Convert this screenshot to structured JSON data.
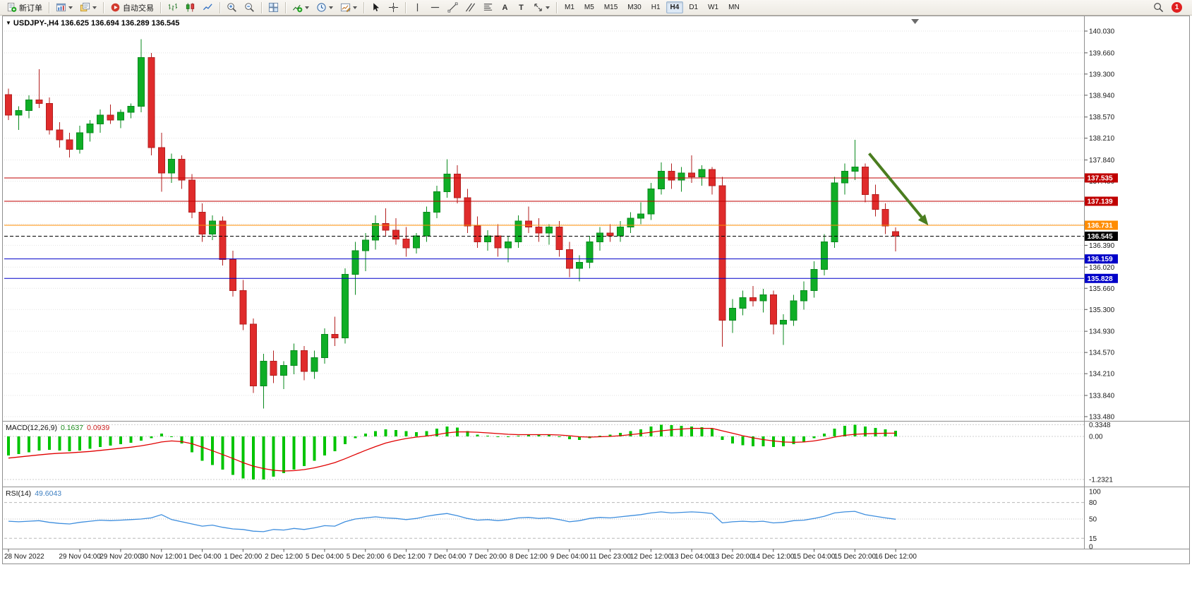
{
  "ui": {
    "collapse_glyph": "▼"
  },
  "toolbar": {
    "items": [
      {
        "name": "new-order",
        "icon": "new-order",
        "label": "新订单"
      },
      {
        "sep": true
      },
      {
        "name": "new-chart",
        "icon": "new-chart",
        "dropdown": true
      },
      {
        "name": "profiles",
        "icon": "profiles",
        "dropdown": true
      },
      {
        "sep": true
      },
      {
        "name": "auto-trading",
        "icon": "auto-trading",
        "label": "自动交易"
      },
      {
        "sep": true
      },
      {
        "name": "chart-bars",
        "icon": "chart-bars"
      },
      {
        "name": "chart-candles",
        "icon": "chart-candles"
      },
      {
        "name": "chart-line",
        "icon": "chart-line"
      },
      {
        "sep": true
      },
      {
        "name": "zoom-in",
        "icon": "zoom-in"
      },
      {
        "name": "zoom-out",
        "icon": "zoom-out"
      },
      {
        "sep": true
      },
      {
        "name": "tile-windows",
        "icon": "tile-windows"
      },
      {
        "sep": true
      },
      {
        "name": "indicators",
        "icon": "indicators",
        "dropdown": true
      },
      {
        "name": "periods",
        "icon": "clock",
        "dropdown": true
      },
      {
        "name": "templates",
        "icon": "templates",
        "dropdown": true
      },
      {
        "sep": true
      },
      {
        "name": "cursor",
        "icon": "cursor"
      },
      {
        "name": "crosshair",
        "icon": "crosshair"
      },
      {
        "sep": true
      },
      {
        "name": "vertical-line",
        "icon": "vline"
      },
      {
        "name": "horizontal-line",
        "icon": "hline"
      },
      {
        "name": "trendline",
        "icon": "trendline"
      },
      {
        "name": "equidistant-channel",
        "icon": "channel"
      },
      {
        "name": "fibonacci",
        "icon": "fibonacci"
      },
      {
        "name": "text",
        "glyph": "A"
      },
      {
        "name": "text-label",
        "glyph": "T"
      },
      {
        "name": "arrows",
        "icon": "arrows",
        "dropdown": true
      },
      {
        "sep": true
      }
    ],
    "timeframes": [
      "M1",
      "M5",
      "M15",
      "M30",
      "H1",
      "H4",
      "D1",
      "W1",
      "MN"
    ],
    "active_timeframe": "H4",
    "badge_count": "1"
  },
  "chart_data": [
    {
      "type": "candlestick",
      "symbol_label": "USDJPY-,H4 136.625 136.694 136.289 136.545",
      "colors": {
        "bull": "#0fae26",
        "bull_stroke": "#0a8a1e",
        "bear": "#e02b2b",
        "bear_stroke": "#b31f1f"
      },
      "y_ticks": [
        140.03,
        139.66,
        139.3,
        138.94,
        138.57,
        138.21,
        137.84,
        137.48,
        137.11,
        136.75,
        136.39,
        136.02,
        135.66,
        135.3,
        134.93,
        134.57,
        134.21,
        133.84,
        133.48
      ],
      "x_labels": [
        {
          "label": "28 Nov 2022",
          "i": 0
        },
        {
          "label": "29 Nov 04:00",
          "i": 7
        },
        {
          "label": "29 Nov 20:00",
          "i": 11
        },
        {
          "label": "30 Nov 12:00",
          "i": 15
        },
        {
          "label": "1 Dec 04:00",
          "i": 19
        },
        {
          "label": "1 Dec 20:00",
          "i": 23
        },
        {
          "label": "2 Dec 12:00",
          "i": 27
        },
        {
          "label": "5 Dec 04:00",
          "i": 31
        },
        {
          "label": "5 Dec 20:00",
          "i": 35
        },
        {
          "label": "6 Dec 12:00",
          "i": 39
        },
        {
          "label": "7 Dec 04:00",
          "i": 43
        },
        {
          "label": "7 Dec 20:00",
          "i": 47
        },
        {
          "label": "8 Dec 12:00",
          "i": 51
        },
        {
          "label": "9 Dec 04:00",
          "i": 55
        },
        {
          "label": "11 Dec 23:00",
          "i": 59
        },
        {
          "label": "12 Dec 12:00",
          "i": 63
        },
        {
          "label": "13 Dec 04:00",
          "i": 67
        },
        {
          "label": "13 Dec 20:00",
          "i": 71
        },
        {
          "label": "14 Dec 12:00",
          "i": 75
        },
        {
          "label": "15 Dec 04:00",
          "i": 79
        },
        {
          "label": "15 Dec 20:00",
          "i": 83
        },
        {
          "label": "16 Dec 12:00",
          "i": 87
        }
      ],
      "hlines": [
        {
          "price": 137.535,
          "label": "137.535",
          "color": "#c00000",
          "style": "solid"
        },
        {
          "price": 137.139,
          "label": "137.139",
          "color": "#c00000",
          "style": "solid"
        },
        {
          "price": 136.731,
          "label": "136.731",
          "color": "#ff8c00",
          "style": "solid"
        },
        {
          "price": 136.545,
          "label": "136.545",
          "color": "#000000",
          "style": "dashed",
          "role": "bid"
        },
        {
          "price": 136.159,
          "label": "136.159",
          "color": "#0000c8",
          "style": "solid"
        },
        {
          "price": 135.828,
          "label": "135.828",
          "color": "#0000c8",
          "style": "solid"
        }
      ],
      "arrow": {
        "from_index": 84.4,
        "from_price": 137.95,
        "to_index": 90.2,
        "to_price": 136.73,
        "color": "#4a7d1f",
        "width": 4
      },
      "shift_marker_index": 88.9,
      "candles": [
        [
          138.95,
          139.05,
          138.52,
          138.6
        ],
        [
          138.6,
          138.75,
          138.35,
          138.68
        ],
        [
          138.68,
          138.94,
          138.55,
          138.86
        ],
        [
          138.86,
          139.38,
          138.72,
          138.8
        ],
        [
          138.8,
          138.9,
          138.27,
          138.35
        ],
        [
          138.35,
          138.48,
          138.05,
          138.18
        ],
        [
          138.18,
          138.3,
          137.88,
          138.02
        ],
        [
          138.02,
          138.42,
          137.95,
          138.3
        ],
        [
          138.3,
          138.52,
          138.15,
          138.45
        ],
        [
          138.45,
          138.7,
          138.3,
          138.6
        ],
        [
          138.6,
          138.78,
          138.45,
          138.52
        ],
        [
          138.52,
          138.7,
          138.38,
          138.65
        ],
        [
          138.65,
          138.8,
          138.55,
          138.75
        ],
        [
          138.75,
          139.89,
          138.65,
          139.58
        ],
        [
          139.58,
          139.66,
          137.92,
          138.05
        ],
        [
          138.05,
          138.3,
          137.3,
          137.62
        ],
        [
          137.62,
          137.95,
          137.45,
          137.85
        ],
        [
          137.85,
          137.92,
          137.35,
          137.5
        ],
        [
          137.5,
          137.6,
          136.85,
          136.95
        ],
        [
          136.95,
          137.1,
          136.45,
          136.58
        ],
        [
          136.58,
          136.9,
          136.48,
          136.8
        ],
        [
          136.8,
          136.88,
          136.05,
          136.15
        ],
        [
          136.15,
          136.3,
          135.52,
          135.62
        ],
        [
          135.62,
          135.8,
          134.95,
          135.05
        ],
        [
          135.05,
          135.15,
          133.88,
          134.0
        ],
        [
          134.0,
          134.55,
          133.62,
          134.42
        ],
        [
          134.42,
          134.6,
          134.05,
          134.18
        ],
        [
          134.18,
          134.42,
          133.95,
          134.35
        ],
        [
          134.35,
          134.72,
          134.2,
          134.6
        ],
        [
          134.6,
          134.68,
          134.1,
          134.25
        ],
        [
          134.25,
          134.6,
          134.12,
          134.48
        ],
        [
          134.48,
          134.98,
          134.38,
          134.88
        ],
        [
          134.88,
          135.18,
          134.68,
          134.82
        ],
        [
          134.82,
          136.0,
          134.72,
          135.9
        ],
        [
          135.9,
          136.45,
          135.55,
          136.3
        ],
        [
          136.3,
          136.6,
          135.95,
          136.48
        ],
        [
          136.48,
          136.9,
          136.32,
          136.76
        ],
        [
          136.76,
          137.02,
          136.55,
          136.65
        ],
        [
          136.65,
          136.85,
          136.4,
          136.5
        ],
        [
          136.5,
          136.7,
          136.2,
          136.35
        ],
        [
          136.35,
          136.6,
          136.25,
          136.55
        ],
        [
          136.55,
          137.05,
          136.45,
          136.95
        ],
        [
          136.95,
          137.4,
          136.85,
          137.3
        ],
        [
          137.3,
          137.85,
          137.2,
          137.6
        ],
        [
          137.6,
          137.75,
          137.1,
          137.2
        ],
        [
          137.2,
          137.35,
          136.6,
          136.72
        ],
        [
          136.72,
          136.88,
          136.35,
          136.45
        ],
        [
          136.45,
          136.65,
          136.3,
          136.55
        ],
        [
          136.55,
          136.75,
          136.2,
          136.35
        ],
        [
          136.35,
          136.55,
          136.1,
          136.45
        ],
        [
          136.45,
          136.9,
          136.35,
          136.8
        ],
        [
          136.8,
          137.05,
          136.6,
          136.7
        ],
        [
          136.7,
          136.85,
          136.45,
          136.6
        ],
        [
          136.6,
          136.75,
          136.4,
          136.7
        ],
        [
          136.7,
          136.8,
          136.2,
          136.32
        ],
        [
          136.32,
          136.45,
          135.85,
          136.0
        ],
        [
          136.0,
          136.22,
          135.78,
          136.1
        ],
        [
          136.1,
          136.55,
          136.0,
          136.45
        ],
        [
          136.45,
          136.7,
          136.3,
          136.6
        ],
        [
          136.6,
          136.75,
          136.45,
          136.55
        ],
        [
          136.55,
          136.8,
          136.45,
          136.7
        ],
        [
          136.7,
          136.95,
          136.6,
          136.85
        ],
        [
          136.85,
          137.12,
          136.75,
          136.92
        ],
        [
          136.92,
          137.45,
          136.82,
          137.35
        ],
        [
          137.35,
          137.8,
          137.25,
          137.65
        ],
        [
          137.65,
          137.78,
          137.35,
          137.5
        ],
        [
          137.5,
          137.72,
          137.3,
          137.62
        ],
        [
          137.62,
          137.92,
          137.45,
          137.55
        ],
        [
          137.55,
          137.75,
          137.4,
          137.68
        ],
        [
          137.68,
          137.72,
          137.25,
          137.4
        ],
        [
          137.4,
          137.55,
          134.67,
          135.12
        ],
        [
          135.12,
          135.48,
          134.9,
          135.32
        ],
        [
          135.32,
          135.62,
          135.2,
          135.5
        ],
        [
          135.5,
          135.7,
          135.35,
          135.45
        ],
        [
          135.45,
          135.65,
          135.25,
          135.55
        ],
        [
          135.55,
          135.62,
          134.88,
          135.05
        ],
        [
          135.05,
          135.22,
          134.7,
          135.12
        ],
        [
          135.12,
          135.55,
          135.02,
          135.45
        ],
        [
          135.45,
          135.78,
          135.3,
          135.62
        ],
        [
          135.62,
          136.12,
          135.5,
          135.98
        ],
        [
          135.98,
          136.58,
          135.88,
          136.45
        ],
        [
          136.45,
          137.55,
          136.35,
          137.45
        ],
        [
          137.45,
          137.78,
          137.25,
          137.65
        ],
        [
          137.65,
          138.18,
          137.5,
          137.72
        ],
        [
          137.72,
          137.78,
          137.12,
          137.25
        ],
        [
          137.25,
          137.42,
          136.88,
          137.0
        ],
        [
          137.0,
          137.1,
          136.58,
          136.72
        ],
        [
          136.625,
          136.694,
          136.289,
          136.545
        ]
      ]
    },
    {
      "type": "bar",
      "label": "MACD(12,26,9)",
      "value_main": "0.1637",
      "value_signal": "0.0939",
      "colors": {
        "hist": "#00c400",
        "signal": "#e00000"
      },
      "y_ticks": [
        {
          "v": 0.3348,
          "label": "0.3348"
        },
        {
          "v": 0,
          "label": "0.00"
        },
        {
          "v": -1.2321,
          "label": "-1.2321"
        }
      ],
      "values": [
        -0.55,
        -0.5,
        -0.45,
        -0.4,
        -0.38,
        -0.4,
        -0.42,
        -0.4,
        -0.35,
        -0.3,
        -0.26,
        -0.22,
        -0.18,
        -0.12,
        -0.05,
        0.08,
        -0.02,
        -0.2,
        -0.45,
        -0.7,
        -0.82,
        -0.95,
        -1.1,
        -1.2,
        -1.23,
        -1.23,
        -1.15,
        -1.05,
        -0.95,
        -0.85,
        -0.7,
        -0.55,
        -0.42,
        -0.22,
        -0.05,
        0.08,
        0.15,
        0.2,
        0.18,
        0.15,
        0.12,
        0.15,
        0.22,
        0.28,
        0.25,
        0.15,
        0.05,
        0.02,
        0.0,
        -0.02,
        0.02,
        0.05,
        0.05,
        0.05,
        0.0,
        -0.08,
        -0.1,
        -0.05,
        0.02,
        0.05,
        0.1,
        0.15,
        0.2,
        0.28,
        0.33,
        0.32,
        0.3,
        0.28,
        0.26,
        0.22,
        -0.1,
        -0.2,
        -0.25,
        -0.28,
        -0.28,
        -0.3,
        -0.28,
        -0.22,
        -0.15,
        -0.05,
        0.08,
        0.22,
        0.3,
        0.33,
        0.28,
        0.24,
        0.2,
        0.1637
      ],
      "signal": [
        -0.62,
        -0.59,
        -0.56,
        -0.53,
        -0.5,
        -0.48,
        -0.47,
        -0.45,
        -0.43,
        -0.4,
        -0.37,
        -0.34,
        -0.31,
        -0.27,
        -0.22,
        -0.16,
        -0.13,
        -0.15,
        -0.21,
        -0.31,
        -0.41,
        -0.52,
        -0.63,
        -0.75,
        -0.85,
        -0.92,
        -0.97,
        -0.99,
        -0.98,
        -0.95,
        -0.9,
        -0.83,
        -0.75,
        -0.64,
        -0.52,
        -0.4,
        -0.29,
        -0.19,
        -0.12,
        -0.06,
        -0.02,
        0.01,
        0.05,
        0.1,
        0.13,
        0.13,
        0.12,
        0.1,
        0.08,
        0.06,
        0.05,
        0.05,
        0.05,
        0.05,
        0.04,
        0.02,
        -0.01,
        -0.02,
        -0.01,
        0.0,
        0.02,
        0.05,
        0.08,
        0.12,
        0.16,
        0.19,
        0.21,
        0.23,
        0.23,
        0.23,
        0.16,
        0.09,
        0.02,
        -0.04,
        -0.09,
        -0.13,
        -0.16,
        -0.17,
        -0.16,
        -0.13,
        -0.08,
        -0.02,
        0.03,
        0.06,
        0.075,
        0.085,
        0.09,
        0.0939
      ]
    },
    {
      "type": "line",
      "label": "RSI(14)",
      "value": "49.6043",
      "color": "#3e8ede",
      "y_ticks": [
        {
          "v": 100,
          "label": "100"
        },
        {
          "v": 80,
          "label": "80"
        },
        {
          "v": 50,
          "label": "50"
        },
        {
          "v": 15,
          "label": "15"
        },
        {
          "v": 0,
          "label": "0"
        }
      ],
      "levels_dashed": [
        80,
        15
      ],
      "levels_dotted": [
        50
      ],
      "values": [
        46,
        45,
        46,
        47,
        44,
        42,
        41,
        44,
        46,
        48,
        47,
        48,
        49,
        50,
        52,
        58,
        49,
        45,
        41,
        37,
        39,
        35,
        32,
        31,
        28,
        27,
        31,
        30,
        33,
        31,
        34,
        38,
        37,
        45,
        50,
        52,
        54,
        52,
        51,
        49,
        51,
        55,
        58,
        60,
        56,
        51,
        48,
        49,
        47,
        49,
        52,
        53,
        51,
        52,
        49,
        45,
        47,
        51,
        53,
        52,
        54,
        56,
        58,
        61,
        63,
        61,
        62,
        63,
        62,
        60,
        43,
        45,
        46,
        45,
        46,
        43,
        44,
        47,
        48,
        51,
        55,
        61,
        63,
        64,
        58,
        55,
        52,
        49.6043
      ]
    }
  ]
}
